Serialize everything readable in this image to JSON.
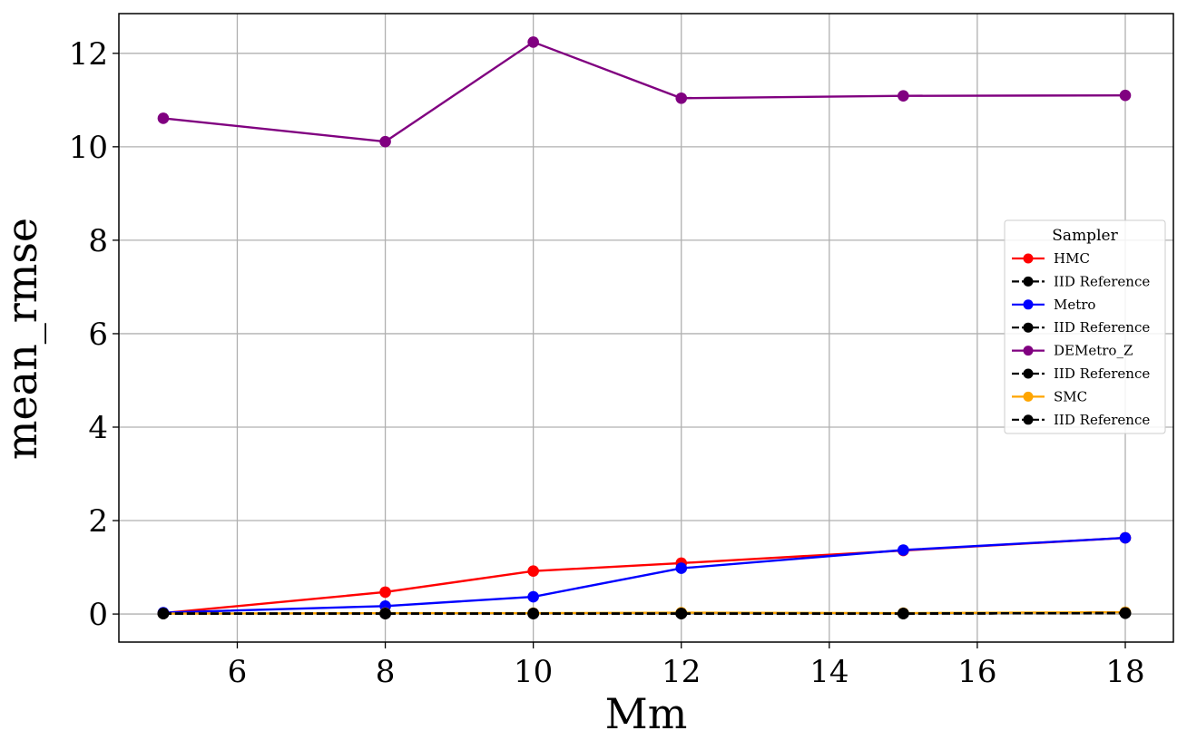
{
  "chart_data": {
    "type": "line",
    "title": "",
    "xlabel": "Mm",
    "ylabel": "mean_rmse",
    "xlim": [
      4.4,
      18.65
    ],
    "ylim": [
      -0.6,
      12.85
    ],
    "xticks": [
      6,
      8,
      10,
      12,
      14,
      16,
      18
    ],
    "yticks": [
      0,
      2,
      4,
      6,
      8,
      10,
      12
    ],
    "grid": true,
    "legend": {
      "title": "Sampler",
      "placement": "center-right"
    },
    "series": [
      {
        "name": "HMC",
        "color": "#ff0000",
        "dashed": false,
        "x": [
          5,
          8,
          10,
          12,
          15,
          18
        ],
        "y": [
          0.02,
          0.47,
          0.92,
          1.09,
          1.36,
          1.63
        ]
      },
      {
        "name": "IID Reference",
        "color": "#000000",
        "dashed": true,
        "x": [
          5,
          8,
          10,
          12,
          15,
          18
        ],
        "y": [
          0.01,
          0.01,
          0.01,
          0.01,
          0.01,
          0.02
        ]
      },
      {
        "name": "Metro",
        "color": "#0000ff",
        "dashed": false,
        "x": [
          5,
          8,
          10,
          12,
          15,
          18
        ],
        "y": [
          0.03,
          0.17,
          0.37,
          0.98,
          1.37,
          1.63
        ]
      },
      {
        "name": "IID Reference",
        "color": "#000000",
        "dashed": true,
        "x": [
          5,
          8,
          10,
          12,
          15,
          18
        ],
        "y": [
          0.01,
          0.01,
          0.01,
          0.01,
          0.01,
          0.02
        ]
      },
      {
        "name": "DEMetro_Z",
        "color": "#800080",
        "dashed": false,
        "x": [
          5,
          8,
          10,
          12,
          15,
          18
        ],
        "y": [
          10.61,
          10.11,
          12.24,
          11.04,
          11.09,
          11.1
        ]
      },
      {
        "name": "IID Reference",
        "color": "#000000",
        "dashed": true,
        "x": [
          5,
          8,
          10,
          12,
          15,
          18
        ],
        "y": [
          0.01,
          0.01,
          0.01,
          0.01,
          0.01,
          0.02
        ]
      },
      {
        "name": "SMC",
        "color": "#ffa500",
        "dashed": false,
        "x": [
          5,
          8,
          10,
          12,
          15,
          18
        ],
        "y": [
          0.01,
          0.02,
          0.02,
          0.03,
          0.02,
          0.04
        ]
      },
      {
        "name": "IID Reference",
        "color": "#000000",
        "dashed": true,
        "x": [
          5,
          8,
          10,
          12,
          15,
          18
        ],
        "y": [
          0.01,
          0.01,
          0.01,
          0.01,
          0.01,
          0.02
        ]
      }
    ]
  }
}
